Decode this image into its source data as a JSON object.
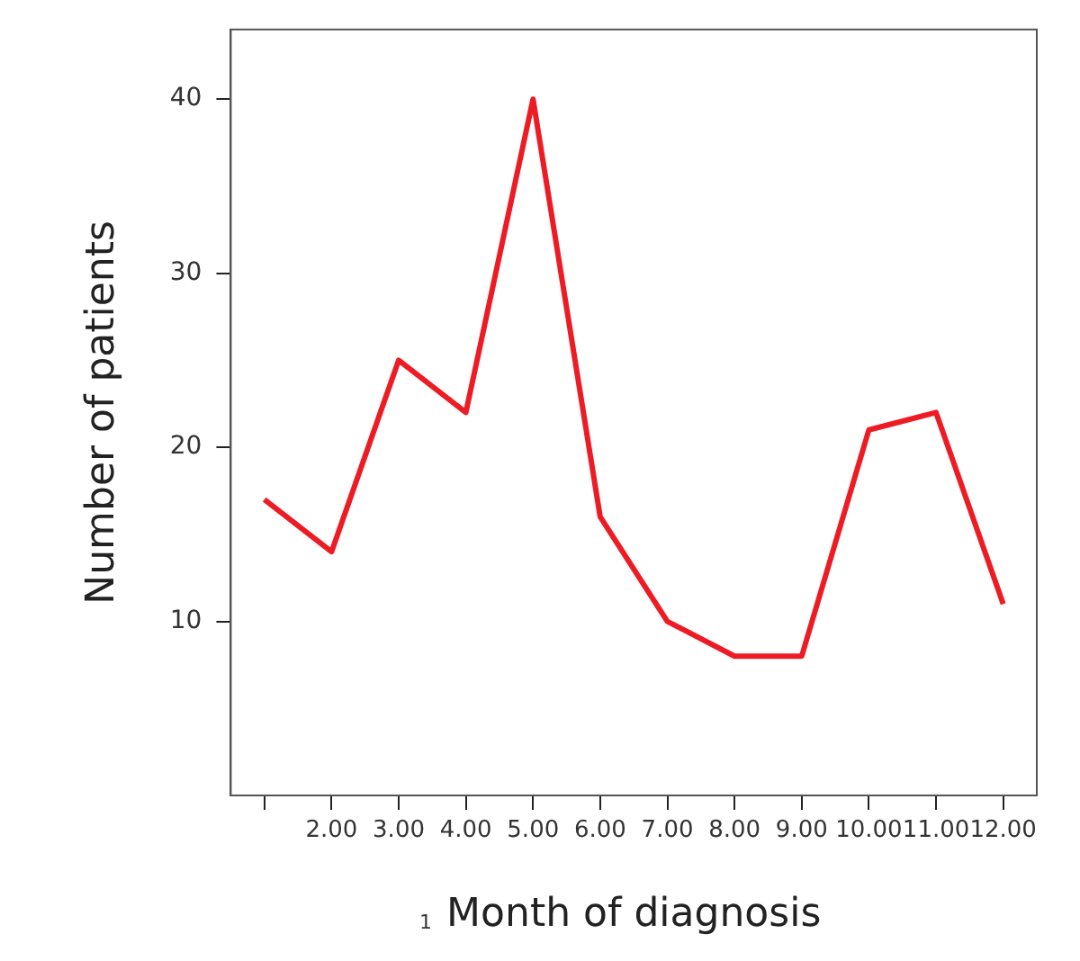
{
  "chart_data": {
    "type": "line",
    "xlabel": "Month of diagnosis",
    "ylabel": "Number of patients",
    "categories": [
      null,
      "2.00",
      "3.00",
      "4.00",
      "5.00",
      "6.00",
      "7.00",
      "8.00",
      "9.00",
      "10.00",
      "11.00",
      "12.00"
    ],
    "series": [
      {
        "color": "#ed1c24",
        "values": [
          17,
          14,
          25,
          22,
          40,
          16,
          10,
          8,
          8,
          21,
          22,
          11
        ]
      }
    ],
    "ylim": [
      0,
      44
    ],
    "yticks": [
      10,
      20,
      30,
      40
    ],
    "grid": false,
    "legend": false,
    "marker": "none",
    "line_style": "solid",
    "annotations": [
      "1"
    ]
  }
}
